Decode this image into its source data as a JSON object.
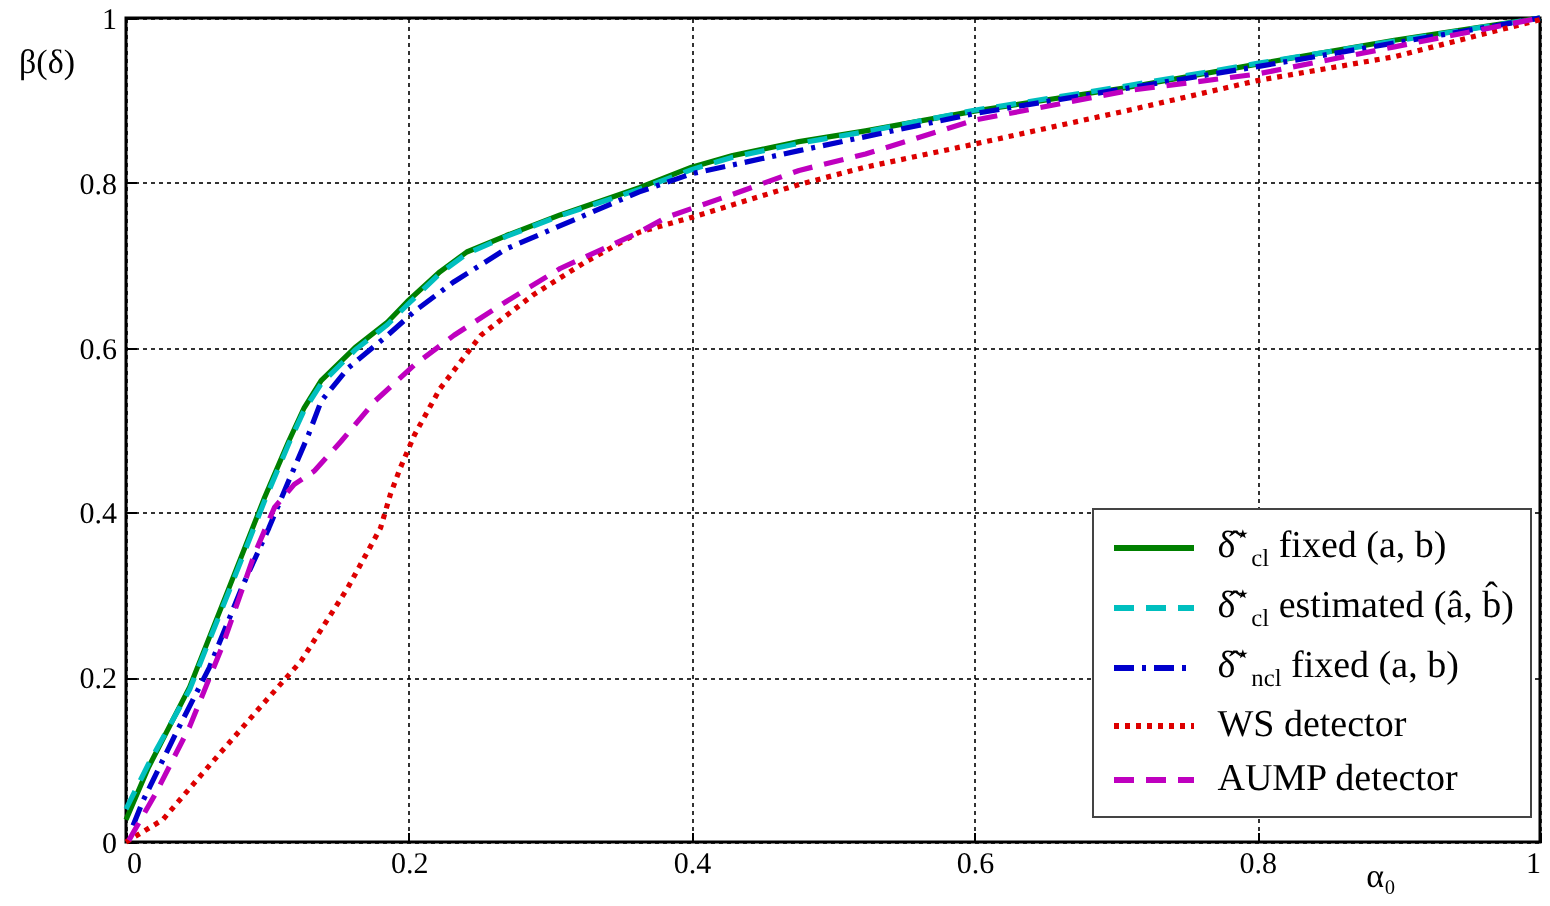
{
  "chart_data": {
    "type": "line",
    "xlabel": "α₀",
    "ylabel": "β(δ)",
    "xlim": [
      0,
      1
    ],
    "ylim": [
      0,
      1
    ],
    "xticks": [
      0,
      0.2,
      0.4,
      0.6,
      0.8,
      1
    ],
    "yticks": [
      0,
      0.2,
      0.4,
      0.6,
      0.8,
      1
    ],
    "grid": true,
    "legend": "bottom right",
    "series": [
      {
        "name": "δ̂$^{⋆}$$_{cl}$  fixed (a, b)",
        "color": "#008000",
        "line_style": "solid",
        "x": [
          0,
          0.016,
          0.045,
          0.073,
          0.098,
          0.115,
          0.126,
          0.138,
          0.162,
          0.185,
          0.199,
          0.222,
          0.241,
          0.269,
          0.307,
          0.363,
          0.4,
          0.429,
          0.476,
          0.523,
          0.6,
          0.709,
          0.8,
          0.897,
          1
        ],
        "values": [
          0.027,
          0.091,
          0.188,
          0.309,
          0.418,
          0.486,
          0.527,
          0.56,
          0.6,
          0.631,
          0.656,
          0.692,
          0.716,
          0.736,
          0.761,
          0.794,
          0.819,
          0.833,
          0.85,
          0.863,
          0.887,
          0.916,
          0.944,
          0.973,
          1
        ]
      },
      {
        "name": "δ̂$^{⋆}$$_{cl}$  estimated (â, b̂)",
        "color": "#00bfbf",
        "line_style": "dashed",
        "x": [
          0,
          0.016,
          0.045,
          0.073,
          0.098,
          0.115,
          0.126,
          0.138,
          0.162,
          0.185,
          0.199,
          0.222,
          0.241,
          0.269,
          0.307,
          0.363,
          0.4,
          0.429,
          0.476,
          0.523,
          0.6,
          0.709,
          0.8,
          0.897,
          1
        ],
        "values": [
          0.04,
          0.095,
          0.185,
          0.305,
          0.414,
          0.483,
          0.524,
          0.556,
          0.597,
          0.628,
          0.652,
          0.69,
          0.714,
          0.735,
          0.76,
          0.792,
          0.816,
          0.831,
          0.848,
          0.862,
          0.888,
          0.918,
          0.945,
          0.972,
          1
        ]
      },
      {
        "name": "δ̂$^{⋆}$$_{ncl}$  fixed (a, b)",
        "color": "#0000cc",
        "line_style": "dashdot",
        "x": [
          0.005,
          0.012,
          0.035,
          0.059,
          0.082,
          0.101,
          0.115,
          0.129,
          0.138,
          0.157,
          0.185,
          0.204,
          0.232,
          0.269,
          0.325,
          0.363,
          0.4,
          0.476,
          0.6,
          0.8,
          1
        ],
        "values": [
          0.02,
          0.05,
          0.131,
          0.212,
          0.309,
          0.381,
          0.438,
          0.494,
          0.535,
          0.575,
          0.615,
          0.644,
          0.68,
          0.72,
          0.761,
          0.789,
          0.811,
          0.839,
          0.884,
          0.941,
          1
        ]
      },
      {
        "name": "WS detector",
        "color": "#dd0000",
        "line_style": "dotted",
        "x": [
          0,
          0.026,
          0.054,
          0.091,
          0.124,
          0.157,
          0.18,
          0.187,
          0.194,
          0.204,
          0.222,
          0.251,
          0.288,
          0.325,
          0.363,
          0.4,
          0.476,
          0.523,
          0.6,
          0.709,
          0.8,
          0.897,
          1
        ],
        "values": [
          0,
          0.027,
          0.083,
          0.156,
          0.22,
          0.309,
          0.381,
          0.422,
          0.454,
          0.494,
          0.55,
          0.615,
          0.664,
          0.704,
          0.74,
          0.758,
          0.798,
          0.819,
          0.847,
          0.888,
          0.924,
          0.953,
          0.998
        ]
      },
      {
        "name": "AUMP detector",
        "color": "#bf00bf",
        "line_style": "dashed",
        "x": [
          0.002,
          0.021,
          0.045,
          0.068,
          0.091,
          0.105,
          0.119,
          0.133,
          0.152,
          0.176,
          0.204,
          0.232,
          0.269,
          0.307,
          0.363,
          0.382,
          0.429,
          0.476,
          0.523,
          0.6,
          0.709,
          0.8,
          0.897,
          1
        ],
        "values": [
          0.002,
          0.059,
          0.14,
          0.237,
          0.35,
          0.406,
          0.434,
          0.45,
          0.486,
          0.535,
          0.579,
          0.615,
          0.656,
          0.696,
          0.74,
          0.758,
          0.786,
          0.815,
          0.835,
          0.876,
          0.912,
          0.932,
          0.965,
          1
        ]
      }
    ]
  }
}
